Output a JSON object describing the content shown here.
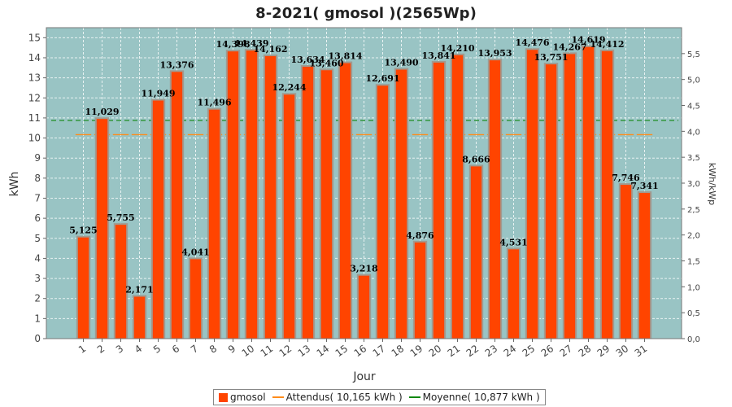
{
  "chart_data": {
    "type": "bar",
    "title": "8-2021( gmosol )(2565Wp)",
    "xlabel": "Jour",
    "ylabel": "kWh",
    "ylabel_right": "kWh/kWp",
    "ylim": [
      0,
      15.5
    ],
    "ylim_right": [
      0,
      6.0
    ],
    "yticks": [
      0,
      1,
      2,
      3,
      4,
      5,
      6,
      7,
      8,
      9,
      10,
      11,
      12,
      13,
      14,
      15
    ],
    "yticks_right": [
      "0,0",
      "0,5",
      "1,0",
      "1,5",
      "2,0",
      "2,5",
      "3,0",
      "3,5",
      "4,0",
      "4,5",
      "5,0",
      "5,5"
    ],
    "grid": true,
    "legend_position": "bottom-center",
    "categories": [
      "1",
      "2",
      "3",
      "4",
      "5",
      "6",
      "7",
      "8",
      "9",
      "10",
      "11",
      "12",
      "13",
      "14",
      "15",
      "16",
      "17",
      "18",
      "19",
      "20",
      "21",
      "22",
      "23",
      "24",
      "25",
      "26",
      "27",
      "28",
      "29",
      "30",
      "31"
    ],
    "series": [
      {
        "name": "gmosol",
        "values": [
          5.125,
          11.029,
          5.755,
          2.171,
          11.949,
          13.376,
          4.041,
          11.496,
          14.398,
          14.439,
          14.162,
          12.244,
          13.634,
          13.46,
          13.814,
          3.218,
          12.691,
          13.49,
          4.876,
          13.841,
          14.21,
          8.666,
          13.953,
          4.531,
          14.476,
          13.751,
          14.267,
          14.619,
          14.412,
          7.746,
          7.341
        ],
        "labels": [
          "5,125",
          "11,029",
          "5,755",
          "2,171",
          "11,949",
          "13,376",
          "4,041",
          "11,496",
          "14,398",
          "14,439",
          "14,162",
          "12,244",
          "13,634",
          "13,460",
          "13,814",
          "3,218",
          "12,691",
          "13,490",
          "4,876",
          "13,841",
          "14,210",
          "8,666",
          "13,953",
          "4,531",
          "14,476",
          "13,751",
          "14,267",
          "14,619",
          "14,412",
          "7,746",
          "7,341"
        ]
      }
    ],
    "expected": {
      "name": "Attendus( 10,165 kWh )",
      "values": [
        10.165,
        10.165,
        10.165,
        10.165,
        10.165,
        10.165,
        10.165,
        10.165,
        10.165,
        10.165,
        10.165,
        10.165,
        10.165,
        10.165,
        10.165,
        10.165,
        10.165,
        10.165,
        10.165,
        10.165,
        10.165,
        10.165,
        10.165,
        10.165,
        10.165,
        10.165,
        10.165,
        10.165,
        10.165,
        10.165,
        10.165
      ]
    },
    "average": {
      "name": "Moyenne( 10,877 kWh )",
      "value": 10.877
    },
    "legend": [
      "gmosol",
      "Attendus( 10,165 kWh )",
      "Moyenne( 10,877 kWh )"
    ],
    "colors": {
      "bar": "#ff4400",
      "bar_shadow": "#a09a90",
      "expected": "#ff8c1a",
      "average": "#118811",
      "plot_bg": "#99c4c4",
      "grid": "#e8f2f2"
    }
  }
}
